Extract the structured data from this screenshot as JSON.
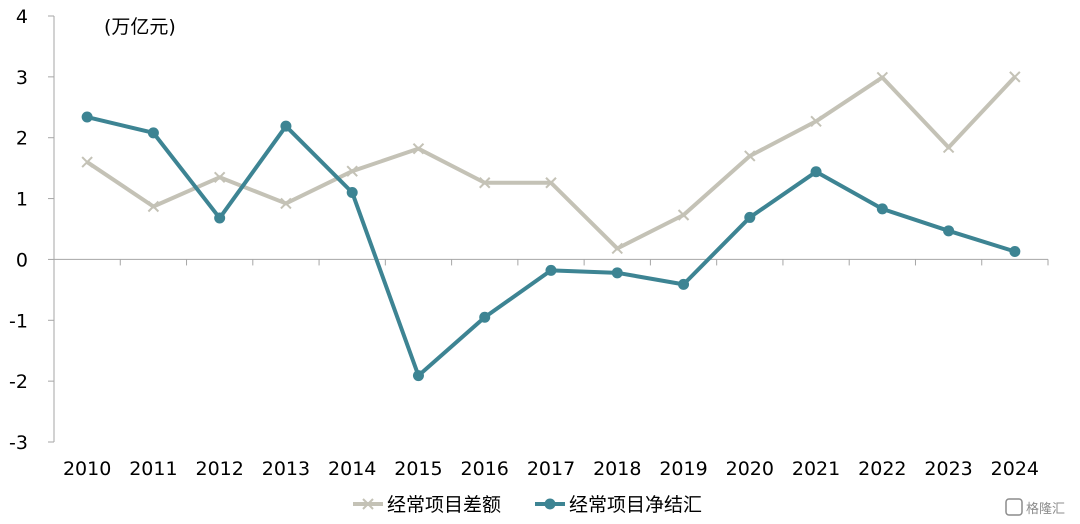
{
  "chart_data": {
    "type": "line",
    "title": "",
    "unit_label": "(万亿元)",
    "xlabel": "",
    "ylabel": "",
    "x": [
      "2010",
      "2011",
      "2012",
      "2013",
      "2014",
      "2015",
      "2016",
      "2017",
      "2018",
      "2019",
      "2020",
      "2021",
      "2022",
      "2023",
      "2024"
    ],
    "ylim": [
      -3,
      4
    ],
    "yticks": [
      "4",
      "3",
      "2",
      "1",
      "0",
      "-1",
      "-2",
      "-3"
    ],
    "grid": false,
    "legend_position": "bottom-center",
    "series": [
      {
        "name": "经常项目差额",
        "color": "#c4c2b6",
        "marker": "x",
        "values": [
          1.6,
          0.87,
          1.35,
          0.92,
          1.45,
          1.82,
          1.26,
          1.26,
          0.18,
          0.73,
          1.7,
          2.27,
          2.99,
          1.84,
          3.0
        ]
      },
      {
        "name": "经常项目净结汇",
        "color": "#3d8493",
        "marker": "circle",
        "values": [
          2.34,
          2.08,
          0.68,
          2.19,
          1.1,
          -1.91,
          -0.95,
          -0.18,
          -0.22,
          -0.41,
          0.69,
          1.44,
          0.83,
          0.47,
          0.13
        ]
      }
    ]
  },
  "watermark": {
    "text": "格隆汇"
  }
}
